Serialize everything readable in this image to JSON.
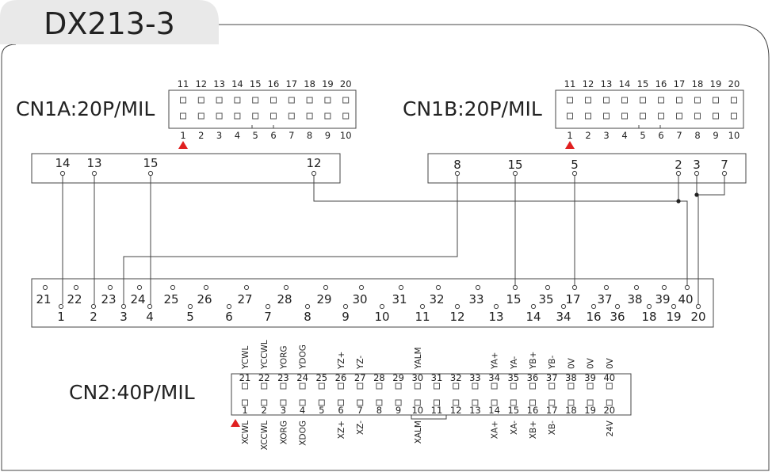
{
  "title": "DX213-3",
  "colors": {
    "line": "#444444",
    "tab_bg": "#e9e9e9",
    "marker": "#e02020",
    "text": "#222222"
  },
  "cn1a": {
    "label": "CN1A:20P/MIL",
    "top_pins": [
      "11",
      "12",
      "13",
      "14",
      "15",
      "16",
      "17",
      "18",
      "19",
      "20"
    ],
    "bottom_pins": [
      "1",
      "2",
      "3",
      "4",
      "5",
      "6",
      "7",
      "8",
      "9",
      "10"
    ]
  },
  "cn1b": {
    "label": "CN1B:20P/MIL",
    "top_pins": [
      "11",
      "12",
      "13",
      "14",
      "15",
      "16",
      "17",
      "18",
      "19",
      "20"
    ],
    "bottom_pins": [
      "1",
      "2",
      "3",
      "4",
      "5",
      "6",
      "7",
      "8",
      "9",
      "10"
    ]
  },
  "bar_a_pins": [
    "14",
    "13",
    "15",
    "12"
  ],
  "bar_b_pins": [
    "8",
    "15",
    "5",
    "2",
    "3",
    "7"
  ],
  "terminal": {
    "top": [
      "21",
      "22",
      "23",
      "24",
      "25",
      "26",
      "27",
      "28",
      "29",
      "30",
      "31",
      "32",
      "33",
      "15",
      "35",
      "17",
      "37",
      "38",
      "39",
      "40"
    ],
    "bottom": [
      "1",
      "2",
      "3",
      "4",
      "5",
      "6",
      "7",
      "8",
      "9",
      "10",
      "11",
      "12",
      "13",
      "14",
      "34",
      "16",
      "36",
      "18",
      "19",
      "20"
    ]
  },
  "cn2": {
    "label": "CN2:40P/MIL",
    "top_pins": [
      "21",
      "22",
      "23",
      "24",
      "25",
      "26",
      "27",
      "28",
      "29",
      "30",
      "31",
      "32",
      "33",
      "34",
      "35",
      "36",
      "37",
      "38",
      "39",
      "40"
    ],
    "bottom_pins": [
      "1",
      "2",
      "3",
      "4",
      "5",
      "6",
      "7",
      "8",
      "9",
      "10",
      "11",
      "12",
      "13",
      "14",
      "15",
      "16",
      "17",
      "18",
      "19",
      "20"
    ],
    "top_signals": [
      "YCWL",
      "YCCWL",
      "YORG",
      "YDOG",
      "",
      "YZ+",
      "YZ-",
      "",
      "",
      "YALM",
      "",
      "",
      "",
      "YA+",
      "YA-",
      "YB+",
      "YB-",
      "0V",
      "0V",
      "0V"
    ],
    "bottom_signals": [
      "XCWL",
      "XCCWL",
      "XORG",
      "XDOG",
      "",
      "XZ+",
      "XZ-",
      "",
      "",
      "XALM",
      "",
      "",
      "",
      "XA+",
      "XA-",
      "XB+",
      "XB-",
      "",
      "",
      "24V"
    ]
  }
}
